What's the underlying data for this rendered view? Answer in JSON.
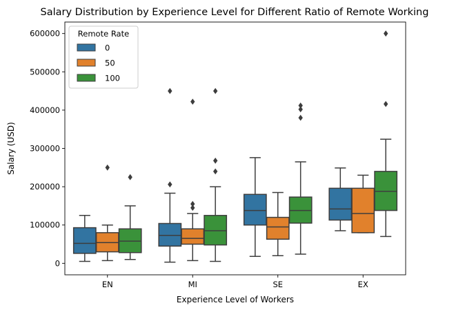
{
  "chart_data": {
    "type": "box",
    "title": "Salary Distribution by Experience Level for Different Ratio of Remote Working",
    "xlabel": "Experience Level of Workers",
    "ylabel": "Salary (USD)",
    "ylim": [
      -30000,
      630000
    ],
    "yticks": [
      0,
      100000,
      200000,
      300000,
      400000,
      500000,
      600000
    ],
    "categories": [
      "EN",
      "MI",
      "SE",
      "EX"
    ],
    "legend": {
      "title": "Remote Rate",
      "placement": "top-left"
    },
    "grid": false,
    "series": [
      {
        "name": "0",
        "color": "#3274a1",
        "boxes": [
          {
            "category": "EN",
            "whislo": 5000,
            "q1": 26000,
            "med": 52000,
            "q3": 93000,
            "whishi": 125000,
            "fliers": []
          },
          {
            "category": "MI",
            "whislo": 3000,
            "q1": 45000,
            "med": 73000,
            "q3": 104000,
            "whishi": 183000,
            "fliers": [
              206000,
              450000
            ]
          },
          {
            "category": "SE",
            "whislo": 18000,
            "q1": 100000,
            "med": 138000,
            "q3": 180000,
            "whishi": 276000,
            "fliers": []
          },
          {
            "category": "EX",
            "whislo": 85000,
            "q1": 113000,
            "med": 142000,
            "q3": 196000,
            "whishi": 249000,
            "fliers": []
          }
        ]
      },
      {
        "name": "50",
        "color": "#e1812c",
        "boxes": [
          {
            "category": "EN",
            "whislo": 7000,
            "q1": 30000,
            "med": 54000,
            "q3": 80000,
            "whishi": 100000,
            "fliers": [
              250000
            ]
          },
          {
            "category": "MI",
            "whislo": 7000,
            "q1": 50000,
            "med": 65000,
            "q3": 90000,
            "whishi": 130000,
            "fliers": [
              145000,
              155000,
              422000
            ]
          },
          {
            "category": "SE",
            "whislo": 20000,
            "q1": 63000,
            "med": 95000,
            "q3": 120000,
            "whishi": 185000,
            "fliers": []
          },
          {
            "category": "EX",
            "whislo": 80000,
            "q1": 80000,
            "med": 130000,
            "q3": 196000,
            "whishi": 230000,
            "fliers": []
          }
        ]
      },
      {
        "name": "100",
        "color": "#3a923a",
        "boxes": [
          {
            "category": "EN",
            "whislo": 10000,
            "q1": 28000,
            "med": 58000,
            "q3": 90000,
            "whishi": 150000,
            "fliers": [
              225000
            ]
          },
          {
            "category": "MI",
            "whislo": 5000,
            "q1": 48000,
            "med": 85000,
            "q3": 125000,
            "whishi": 200000,
            "fliers": [
              240000,
              268000,
              450000
            ]
          },
          {
            "category": "SE",
            "whislo": 24000,
            "q1": 105000,
            "med": 138000,
            "q3": 173000,
            "whishi": 265000,
            "fliers": [
              380000,
              402000,
              412000
            ]
          },
          {
            "category": "EX",
            "whislo": 70000,
            "q1": 138000,
            "med": 188000,
            "q3": 240000,
            "whishi": 324000,
            "fliers": [
              416000,
              600000
            ]
          }
        ]
      }
    ]
  }
}
